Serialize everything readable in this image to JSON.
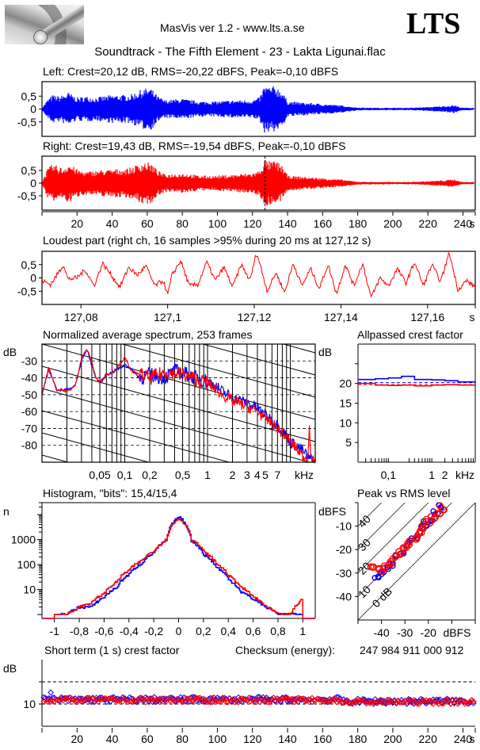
{
  "header": {
    "app_title": "MasVis ver 1.2 - www.lts.a.se",
    "brand": "LTS",
    "file_title": "Soundtrack - The Fifth Element - 23 - Lakta Ligunai.flac",
    "logo": "microphone-logo"
  },
  "colors": {
    "left": "#0000ff",
    "right": "#ff0000",
    "axis": "#000000"
  },
  "chart_data": [
    {
      "id": "left_waveform",
      "type": "area",
      "title": "Left: Crest=20,12 dB, RMS=-20,22 dBFS, Peak=-0,10 dBFS",
      "channel": "left",
      "ylim": [
        -1,
        1
      ],
      "yticks": [
        "0,5",
        "0",
        "-0,5"
      ],
      "ytick_values": [
        0.5,
        0,
        -0.5
      ],
      "xlim": [
        0,
        247
      ],
      "envelope": {
        "x": [
          0,
          3,
          6,
          10,
          15,
          20,
          25,
          30,
          40,
          50,
          58,
          62,
          66,
          70,
          80,
          90,
          100,
          110,
          120,
          124,
          127,
          130,
          133,
          137,
          140,
          150,
          160,
          170,
          180,
          190,
          200,
          210,
          220,
          230,
          235,
          238,
          240,
          247
        ],
        "amplitude": [
          0.05,
          0.35,
          0.55,
          0.5,
          0.65,
          0.45,
          0.5,
          0.45,
          0.55,
          0.55,
          0.8,
          0.82,
          0.5,
          0.35,
          0.4,
          0.3,
          0.3,
          0.35,
          0.35,
          0.45,
          0.95,
          0.85,
          0.9,
          0.7,
          0.3,
          0.25,
          0.2,
          0.15,
          0.06,
          0.05,
          0.05,
          0.05,
          0.08,
          0.12,
          0.16,
          0.08,
          0.05,
          0.05
        ]
      }
    },
    {
      "id": "right_waveform",
      "type": "area",
      "title": "Right: Crest=19,43 dB, RMS=-19,54 dBFS, Peak=-0,10 dBFS",
      "channel": "right",
      "ylim": [
        -1,
        1
      ],
      "yticks": [
        "0,5",
        "0",
        "-0,5"
      ],
      "ytick_values": [
        0.5,
        0,
        -0.5
      ],
      "xlim": [
        0,
        247
      ],
      "xticks": [
        "20",
        "40",
        "60",
        "80",
        "100",
        "120",
        "140",
        "160",
        "180",
        "200",
        "220",
        "240",
        "s"
      ],
      "xtick_values": [
        20,
        40,
        60,
        80,
        100,
        120,
        140,
        160,
        180,
        200,
        220,
        240
      ],
      "marker_x": 127.12,
      "envelope": {
        "x": [
          0,
          3,
          6,
          8,
          12,
          15,
          20,
          25,
          30,
          40,
          50,
          58,
          62,
          66,
          70,
          80,
          90,
          100,
          110,
          120,
          124,
          127,
          130,
          133,
          137,
          140,
          150,
          160,
          170,
          180,
          190,
          200,
          210,
          220,
          230,
          235,
          238,
          240,
          247
        ],
        "amplitude": [
          0.05,
          0.55,
          0.75,
          0.7,
          0.6,
          0.8,
          0.55,
          0.45,
          0.5,
          0.55,
          0.6,
          0.85,
          0.8,
          0.5,
          0.35,
          0.4,
          0.3,
          0.3,
          0.35,
          0.4,
          0.5,
          0.95,
          0.85,
          0.9,
          0.7,
          0.3,
          0.25,
          0.2,
          0.15,
          0.06,
          0.05,
          0.05,
          0.05,
          0.08,
          0.12,
          0.16,
          0.08,
          0.05,
          0.05
        ]
      }
    },
    {
      "id": "loudest_part",
      "type": "line",
      "title": "Loudest part (right ch, 16 samples >95% during 20 ms at 127,12 s)",
      "channel": "right",
      "ylim": [
        -1,
        1
      ],
      "yticks": [
        "0,5",
        "0",
        "-0,5"
      ],
      "ytick_values": [
        0.5,
        0,
        -0.5
      ],
      "xlim": [
        127.071,
        127.171
      ],
      "xticks": [
        "127,08",
        "127,1",
        "127,12",
        "127,14",
        "127,16",
        "s"
      ],
      "xtick_values": [
        127.08,
        127.1,
        127.12,
        127.14,
        127.16
      ],
      "x": [
        127.071,
        127.073,
        127.074,
        127.076,
        127.077,
        127.079,
        127.081,
        127.083,
        127.085,
        127.087,
        127.089,
        127.091,
        127.093,
        127.095,
        127.097,
        127.099,
        127.1,
        127.101,
        127.103,
        127.105,
        127.107,
        127.109,
        127.111,
        127.113,
        127.115,
        127.117,
        127.119,
        127.1205,
        127.121,
        127.123,
        127.125,
        127.127,
        127.129,
        127.131,
        127.133,
        127.135,
        127.137,
        127.139,
        127.141,
        127.143,
        127.145,
        127.147,
        127.149,
        127.151,
        127.153,
        127.155,
        127.157,
        127.159,
        127.161,
        127.163,
        127.165,
        127.167,
        127.169,
        127.171
      ],
      "y": [
        -0.1,
        -0.25,
        0.0,
        0.5,
        -0.05,
        0.0,
        0.3,
        -0.3,
        0.55,
        0.1,
        -0.35,
        0.4,
        0.1,
        0.45,
        -0.3,
        -0.1,
        -0.65,
        0.1,
        0.65,
        -0.3,
        -0.25,
        0.6,
        -0.1,
        0.4,
        -0.35,
        0.5,
        -0.1,
        0.95,
        0.7,
        -0.5,
        0.2,
        -0.55,
        0.55,
        -0.3,
        0.35,
        -0.4,
        0.5,
        -0.6,
        0.5,
        -0.3,
        0.55,
        -0.75,
        0.0,
        -0.3,
        0.35,
        -0.2,
        0.6,
        -0.3,
        0.5,
        -0.15,
        0.95,
        -0.45,
        -0.1,
        -0.35
      ]
    },
    {
      "id": "average_spectrum",
      "type": "line",
      "title": "Normalized average spectrum, 253 frames",
      "ylabel": "dB",
      "yscale": "linear",
      "ylim": [
        -90,
        -20
      ],
      "yticks": [
        "-30",
        "-40",
        "-50",
        "-60",
        "-70",
        "-80"
      ],
      "ytick_values": [
        -30,
        -40,
        -50,
        -60,
        -70,
        -80
      ],
      "xscale": "log",
      "xlim_khz": [
        0.01,
        20
      ],
      "xticks": [
        "0,05",
        "0,1",
        "0,2",
        "0,5",
        "1",
        "2",
        "3",
        "4",
        "5",
        "7",
        "kHz"
      ],
      "xtick_values": [
        0.05,
        0.1,
        0.2,
        0.5,
        1,
        2,
        3,
        4,
        5,
        7
      ],
      "grid": true,
      "series": [
        {
          "name": "Left",
          "channel": "left",
          "x": [
            0.01,
            0.012,
            0.015,
            0.02,
            0.025,
            0.03,
            0.035,
            0.04,
            0.045,
            0.05,
            0.06,
            0.07,
            0.08,
            0.09,
            0.1,
            0.12,
            0.15,
            0.2,
            0.3,
            0.4,
            0.5,
            0.7,
            1,
            1.5,
            2,
            3,
            4,
            5,
            7,
            10,
            14,
            17,
            18,
            20
          ],
          "y": [
            -50,
            -35,
            -47,
            -47,
            -45,
            -30,
            -23,
            -33,
            -40,
            -43,
            -38,
            -37,
            -35,
            -34,
            -32,
            -35,
            -40,
            -38,
            -40,
            -36,
            -37,
            -40,
            -42,
            -48,
            -52,
            -55,
            -58,
            -62,
            -68,
            -78,
            -83,
            -88,
            -88,
            -90
          ]
        },
        {
          "name": "Right",
          "channel": "right",
          "x": [
            0.01,
            0.012,
            0.015,
            0.02,
            0.025,
            0.03,
            0.035,
            0.04,
            0.045,
            0.05,
            0.06,
            0.07,
            0.08,
            0.09,
            0.1,
            0.12,
            0.15,
            0.2,
            0.3,
            0.4,
            0.5,
            0.7,
            1,
            1.5,
            2,
            3,
            4,
            5,
            7,
            10,
            14,
            16,
            17,
            18,
            20
          ],
          "y": [
            -50,
            -34,
            -47,
            -48,
            -45,
            -28,
            -23,
            -31,
            -40,
            -43,
            -38,
            -37,
            -34,
            -31,
            -28,
            -36,
            -38,
            -40,
            -37,
            -37,
            -38,
            -41,
            -43,
            -50,
            -54,
            -57,
            -60,
            -64,
            -70,
            -78,
            -86,
            -88,
            -70,
            -90,
            -90
          ]
        }
      ]
    },
    {
      "id": "allpassed_crest",
      "type": "line",
      "title": "Allpassed crest factor",
      "ylabel": "dB",
      "ylim": [
        0,
        30
      ],
      "yticks": [
        "20",
        "15",
        "10",
        "5"
      ],
      "ytick_values": [
        20,
        15,
        10,
        5
      ],
      "xscale": "log",
      "xlim_khz": [
        0.02,
        10
      ],
      "xticks": [
        "0,1",
        "1",
        "2",
        "kHz"
      ],
      "xtick_values": [
        0.1,
        1,
        2
      ],
      "series": [
        {
          "name": "Left",
          "channel": "left",
          "x": [
            0.02,
            0.05,
            0.1,
            0.2,
            0.4,
            1,
            2,
            4,
            10
          ],
          "y": [
            21.0,
            21.2,
            21.4,
            21.8,
            21.0,
            20.9,
            20.7,
            20.4,
            20.2
          ],
          "reference": 20.2
        },
        {
          "name": "Right",
          "channel": "right",
          "x": [
            0.02,
            0.05,
            0.1,
            0.2,
            0.4,
            1,
            2,
            4,
            10
          ],
          "y": [
            20.0,
            19.6,
            19.5,
            19.6,
            19.4,
            19.6,
            19.7,
            19.6,
            19.6
          ],
          "reference": 19.7
        }
      ]
    },
    {
      "id": "histogram",
      "type": "line",
      "title": "Histogram, \"bits\": 15,4/15,4",
      "ylabel": "n",
      "yscale": "log",
      "ylim": [
        0.7,
        30000
      ],
      "yticks": [
        "1000",
        "100",
        "10"
      ],
      "ytick_values": [
        1000,
        100,
        10
      ],
      "xlim": [
        -1.1,
        1.1
      ],
      "xticks": [
        "-1",
        "-0,8",
        "-0,6",
        "-0,4",
        "-0,2",
        "0",
        "0,2",
        "0,4",
        "0,6",
        "0,8",
        "1"
      ],
      "xtick_values": [
        -1,
        -0.8,
        -0.6,
        -0.4,
        -0.2,
        0,
        0.2,
        0.4,
        0.6,
        0.8,
        1
      ],
      "series": [
        {
          "name": "Left",
          "channel": "left",
          "x": [
            -1,
            -0.9,
            -0.8,
            -0.7,
            -0.6,
            -0.5,
            -0.4,
            -0.3,
            -0.2,
            -0.1,
            0,
            0.1,
            0.2,
            0.3,
            0.4,
            0.5,
            0.6,
            0.7,
            0.8,
            0.9,
            1
          ],
          "y": [
            1,
            1,
            2,
            2,
            5,
            12,
            40,
            110,
            300,
            900,
            8000,
            900,
            250,
            80,
            25,
            8,
            4,
            2,
            1,
            1,
            1
          ]
        },
        {
          "name": "Right",
          "channel": "right",
          "x": [
            -1,
            -0.9,
            -0.8,
            -0.7,
            -0.6,
            -0.5,
            -0.4,
            -0.3,
            -0.2,
            -0.1,
            0,
            0.1,
            0.2,
            0.3,
            0.4,
            0.5,
            0.6,
            0.7,
            0.8,
            0.9,
            1
          ],
          "y": [
            1,
            1,
            2,
            3,
            7,
            20,
            60,
            140,
            350,
            1000,
            7000,
            1000,
            320,
            110,
            35,
            12,
            5,
            2,
            1,
            1,
            4
          ]
        }
      ]
    },
    {
      "id": "peak_vs_rms",
      "type": "scatter",
      "title": "Peak vs RMS level",
      "ylabel": "dBFS",
      "xlabel": "dBFS",
      "xlim": [
        -50,
        0
      ],
      "ylim": [
        -50,
        0
      ],
      "yticks": [
        "-10",
        "-20",
        "-30",
        "-40"
      ],
      "ytick_values": [
        -10,
        -20,
        -30,
        -40
      ],
      "xticks": [
        "-40",
        "-30",
        "-20",
        "dBFS"
      ],
      "xtick_values": [
        -40,
        -30,
        -20
      ],
      "diagonal_labels": [
        "40",
        "30",
        "20",
        "10",
        "0 dB"
      ],
      "diagonal_offsets": [
        40,
        30,
        20,
        10,
        0
      ],
      "series": [
        {
          "name": "Left",
          "channel": "left",
          "x": [
            -42,
            -40,
            -38,
            -36,
            -33,
            -31,
            -29,
            -27,
            -25,
            -23,
            -21,
            -19,
            -17,
            -15
          ],
          "y": [
            -31,
            -30,
            -28,
            -26,
            -23,
            -21,
            -18,
            -16,
            -14,
            -11,
            -9,
            -7,
            -4,
            -2
          ]
        },
        {
          "name": "Right",
          "channel": "right",
          "x": [
            -44,
            -40,
            -38,
            -36,
            -34,
            -32,
            -30,
            -28,
            -26,
            -24,
            -22,
            -20,
            -18,
            -16,
            -14
          ],
          "y": [
            -27,
            -29,
            -27,
            -25,
            -23,
            -21,
            -19,
            -17,
            -15,
            -13,
            -10,
            -8,
            -6,
            -4,
            -2
          ]
        }
      ]
    },
    {
      "id": "short_term_crest",
      "type": "scatter",
      "title": "Short term (1 s) crest factor",
      "ylabel": "dB",
      "ylim": [
        5,
        20
      ],
      "yticks": [
        "10"
      ],
      "ytick_values": [
        10
      ],
      "dashed_lines": [
        10,
        15
      ],
      "xlim": [
        0,
        247
      ],
      "xticks": [
        "20",
        "40",
        "60",
        "80",
        "100",
        "120",
        "140",
        "160",
        "180",
        "200",
        "220",
        "240",
        "s"
      ],
      "xtick_values": [
        20,
        40,
        60,
        80,
        100,
        120,
        140,
        160,
        180,
        200,
        220,
        240
      ],
      "series": [
        {
          "name": "Left",
          "channel": "left",
          "mean": 11.0,
          "spread": 0.6,
          "outlier": {
            "x": 5,
            "y": 12.6
          }
        },
        {
          "name": "Right",
          "channel": "right",
          "mean": 10.9,
          "spread": 0.5
        }
      ]
    }
  ],
  "checksum": {
    "label": "Checksum (energy):",
    "value": "247 984 911 000 912"
  }
}
